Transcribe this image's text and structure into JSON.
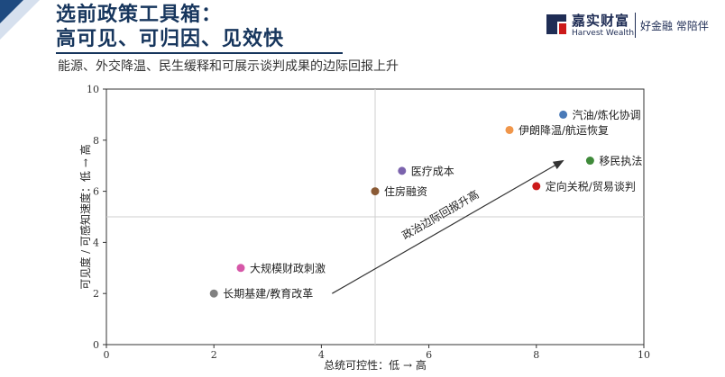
{
  "header": {
    "title_line1": "选前政策工具箱：",
    "title_line2": "高可见、可归因、见效快",
    "subtitle": "能源、外交降温、民生缓释和可展示谈判成果的边际回报上升"
  },
  "logo": {
    "name_cn": "嘉实财富",
    "name_en": "Harvest Wealth",
    "slogan": "好金融 常陪伴"
  },
  "chart_data": {
    "type": "scatter",
    "title": "",
    "xlabel": "总统可控性：低 → 高",
    "ylabel": "可见度 / 可感知速度：低 → 高",
    "xlim": [
      0,
      10
    ],
    "ylim": [
      0,
      10
    ],
    "xticks": [
      "0",
      "2",
      "4",
      "6",
      "8",
      "10"
    ],
    "yticks": [
      "0",
      "2",
      "4",
      "6",
      "8",
      "10"
    ],
    "grid": false,
    "reference_lines": {
      "x": 5,
      "y": 5
    },
    "points": [
      {
        "label": "汽油/炼化协调",
        "x": 8.5,
        "y": 9.0,
        "color": "#4a7ab8"
      },
      {
        "label": "伊朗降温/航运恢复",
        "x": 7.5,
        "y": 8.4,
        "color": "#f0964a"
      },
      {
        "label": "移民执法",
        "x": 9.0,
        "y": 7.2,
        "color": "#3f8a3a"
      },
      {
        "label": "医疗成本",
        "x": 5.5,
        "y": 6.8,
        "color": "#7b63ad"
      },
      {
        "label": "住房融资",
        "x": 5.0,
        "y": 6.0,
        "color": "#8a5a35"
      },
      {
        "label": "定向关税/贸易谈判",
        "x": 8.0,
        "y": 6.2,
        "color": "#cc1a1a"
      },
      {
        "label": "大规模财政刺激",
        "x": 2.5,
        "y": 3.0,
        "color": "#d657a8"
      },
      {
        "label": "长期基建/教育改革",
        "x": 2.0,
        "y": 2.0,
        "color": "#808080"
      }
    ],
    "arrow": {
      "label": "政治边际回报升高",
      "from": [
        4.2,
        2.0
      ],
      "to": [
        8.5,
        7.2
      ]
    }
  }
}
